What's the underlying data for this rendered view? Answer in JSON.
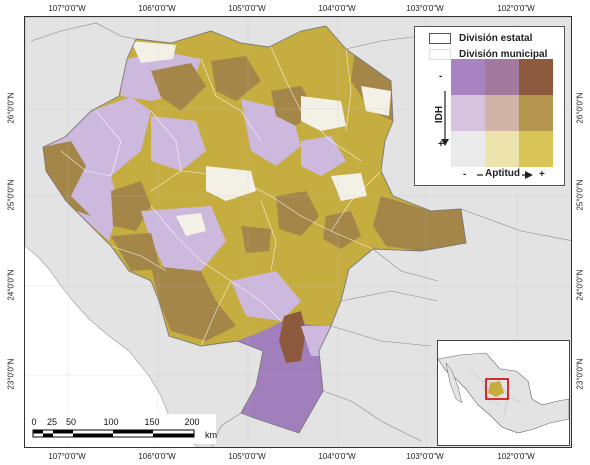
{
  "graticule": {
    "top": [
      "107°0'0\"W",
      "106°0'0\"W",
      "105°0'0\"W",
      "104°0'0\"W",
      "103°0'0\"W",
      "102°0'0\"W"
    ],
    "bottom": [
      "107°0'0\"W",
      "106°0'0\"W",
      "105°0'0\"W",
      "104°0'0\"W",
      "103°0'0\"W",
      "102°0'0\"W"
    ],
    "left": [
      "26°0'0\"N",
      "25°0'0\"N",
      "24°0'0\"N",
      "23°0'0\"N"
    ],
    "right": [
      "26°0'0\"N",
      "25°0'0\"N",
      "24°0'0\"N",
      "23°0'0\"N"
    ]
  },
  "legend": {
    "state_division": "División estatal",
    "municipal_division": "División municipal",
    "y_axis_label": "IDH",
    "y_minus": "-",
    "y_plus": "+",
    "x_axis_label": "Aptitud",
    "x_minus": "-",
    "x_plus": "+"
  },
  "bivariate_colors": {
    "row_idh_low": [
      "#a784c1",
      "#a37a9e",
      "#8d5a3e"
    ],
    "row_idh_mid": [
      "#d6c4de",
      "#d2b4a6",
      "#b3954e"
    ],
    "row_idh_high": [
      "#eaeaea",
      "#ece2ab",
      "#d9c557"
    ]
  },
  "scale_bar": {
    "labels": [
      "0",
      "25",
      "50",
      "100",
      "150",
      "200"
    ],
    "unit": "km"
  },
  "colors": {
    "ocean": "#ffffff",
    "land_outside": "#e3e3e3",
    "gold": "#c6ad3f",
    "brown": "#a48649",
    "lavender": "#cdb9dd",
    "purple": "#a17fbd",
    "highlight_red": "#d00000"
  }
}
